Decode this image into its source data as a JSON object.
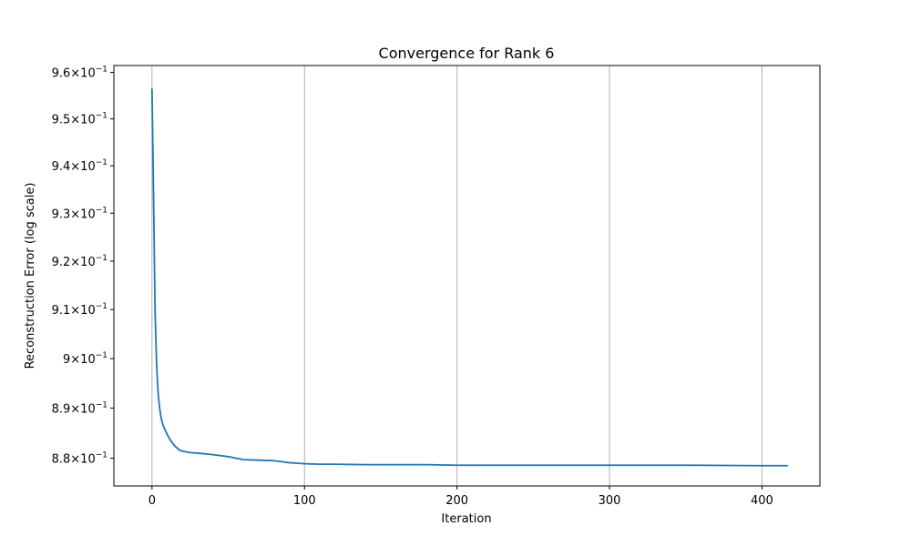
{
  "chart_data": {
    "type": "line",
    "title": "Convergence for Rank 6",
    "xlabel": "Iteration",
    "ylabel": "Reconstruction Error (log scale)",
    "yscale": "log",
    "xlim": [
      -25,
      438
    ],
    "ylim": [
      0.8745,
      0.9615
    ],
    "grid": "x-major",
    "line_color": "#1f77b4",
    "xticks": [
      {
        "value": 0,
        "label": "0"
      },
      {
        "value": 100,
        "label": "100"
      },
      {
        "value": 200,
        "label": "200"
      },
      {
        "value": 300,
        "label": "300"
      },
      {
        "value": 400,
        "label": "400"
      }
    ],
    "yticks": [
      {
        "value": 0.88,
        "mantissa": "8.8",
        "exponent": "−1"
      },
      {
        "value": 0.89,
        "mantissa": "8.9",
        "exponent": "−1"
      },
      {
        "value": 0.9,
        "mantissa": "9",
        "exponent": "−1"
      },
      {
        "value": 0.91,
        "mantissa": "9.1",
        "exponent": "−1"
      },
      {
        "value": 0.92,
        "mantissa": "9.2",
        "exponent": "−1"
      },
      {
        "value": 0.93,
        "mantissa": "9.3",
        "exponent": "−1"
      },
      {
        "value": 0.94,
        "mantissa": "9.4",
        "exponent": "−1"
      },
      {
        "value": 0.95,
        "mantissa": "9.5",
        "exponent": "−1"
      },
      {
        "value": 0.96,
        "mantissa": "9.6",
        "exponent": "−1"
      }
    ],
    "series": [
      {
        "x": [
          0,
          1,
          2,
          3,
          4,
          5,
          6,
          7,
          8,
          10,
          12,
          15,
          18,
          20,
          25,
          30,
          40,
          50,
          55,
          60,
          70,
          80,
          85,
          90,
          95,
          100,
          110,
          120,
          140,
          160,
          180,
          200,
          250,
          300,
          350,
          400,
          417
        ],
        "y": [
          0.9565,
          0.934,
          0.91,
          0.899,
          0.893,
          0.89,
          0.888,
          0.8868,
          0.886,
          0.8847,
          0.8836,
          0.8824,
          0.8816,
          0.8814,
          0.8811,
          0.881,
          0.8807,
          0.8803,
          0.88,
          0.8797,
          0.8796,
          0.8795,
          0.8793,
          0.8791,
          0.879,
          0.8789,
          0.8788,
          0.8788,
          0.8787,
          0.8787,
          0.8787,
          0.8786,
          0.8786,
          0.8786,
          0.8786,
          0.8785,
          0.8785
        ]
      }
    ]
  }
}
